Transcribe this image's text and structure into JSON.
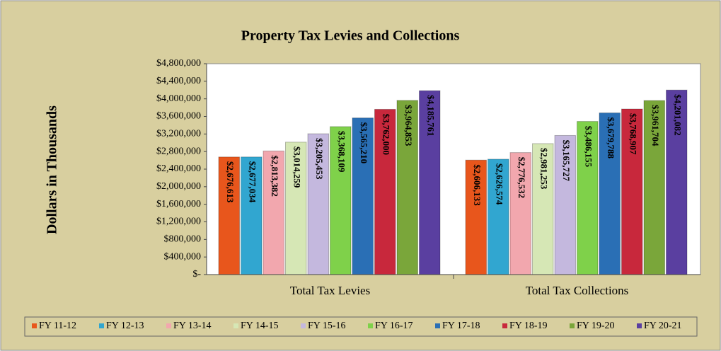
{
  "chart_data": {
    "type": "bar",
    "title": "Property Tax Levies and Collections",
    "y_label": "Dollars in Thousands",
    "categories": [
      "Total Tax Levies",
      "Total Tax Collections"
    ],
    "series": [
      {
        "name": "FY 11-12",
        "color": "#e8561c",
        "values": [
          2676613,
          2606133
        ],
        "value_labels": [
          "$2,676,613",
          "$2,606,133"
        ]
      },
      {
        "name": "FY 12-13",
        "color": "#31a6d0",
        "values": [
          2677034,
          2626574
        ],
        "value_labels": [
          "$2,677,034",
          "$2,626,574"
        ]
      },
      {
        "name": "FY 13-14",
        "color": "#f2a7ae",
        "values": [
          2813382,
          2776532
        ],
        "value_labels": [
          "$2,813,382",
          "$2,776,532"
        ]
      },
      {
        "name": "FY 14-15",
        "color": "#d6e7b5",
        "values": [
          3014259,
          2981253
        ],
        "value_labels": [
          "$3,014,259",
          "$2,981,253"
        ]
      },
      {
        "name": "FY 15-16",
        "color": "#c4b8de",
        "values": [
          3205453,
          3165727
        ],
        "value_labels": [
          "$3,205,453",
          "$3,165,727"
        ]
      },
      {
        "name": "FY 16-17",
        "color": "#7fd14a",
        "values": [
          3368109,
          3486155
        ],
        "value_labels": [
          "$3,368,109",
          "$3,486,155"
        ]
      },
      {
        "name": "FY 17-18",
        "color": "#2a6fb5",
        "values": [
          3565210,
          3679788
        ],
        "value_labels": [
          "$3,565,210",
          "$3,679,788"
        ]
      },
      {
        "name": "FY 18-19",
        "color": "#c8283c",
        "values": [
          3762000,
          3768907
        ],
        "value_labels": [
          "$3,762,000",
          "$3,768,907"
        ]
      },
      {
        "name": "FY 19-20",
        "color": "#7aa63a",
        "values": [
          3964853,
          3961704
        ],
        "value_labels": [
          "$3,964,853",
          "$3,961,704"
        ]
      },
      {
        "name": "FY 20-21",
        "color": "#5a3fa0",
        "values": [
          4185761,
          4201082
        ],
        "value_labels": [
          "$4,185,761",
          "$4,201,082"
        ]
      }
    ],
    "ylim": [
      0,
      4800000
    ],
    "yticks": [
      {
        "value": 0,
        "label": "$-"
      },
      {
        "value": 400000,
        "label": "$400,000"
      },
      {
        "value": 800000,
        "label": "$800,000"
      },
      {
        "value": 1200000,
        "label": "$1,200,000"
      },
      {
        "value": 1600000,
        "label": "$1,600,000"
      },
      {
        "value": 2000000,
        "label": "$2,000,000"
      },
      {
        "value": 2400000,
        "label": "$2,400,000"
      },
      {
        "value": 2800000,
        "label": "$2,800,000"
      },
      {
        "value": 3200000,
        "label": "$3,200,000"
      },
      {
        "value": 3600000,
        "label": "$3,600,000"
      },
      {
        "value": 4000000,
        "label": "$4,000,000"
      },
      {
        "value": 4400000,
        "label": "$4,400,000"
      },
      {
        "value": 4800000,
        "label": "$4,800,000"
      }
    ],
    "legend": "bottom"
  }
}
